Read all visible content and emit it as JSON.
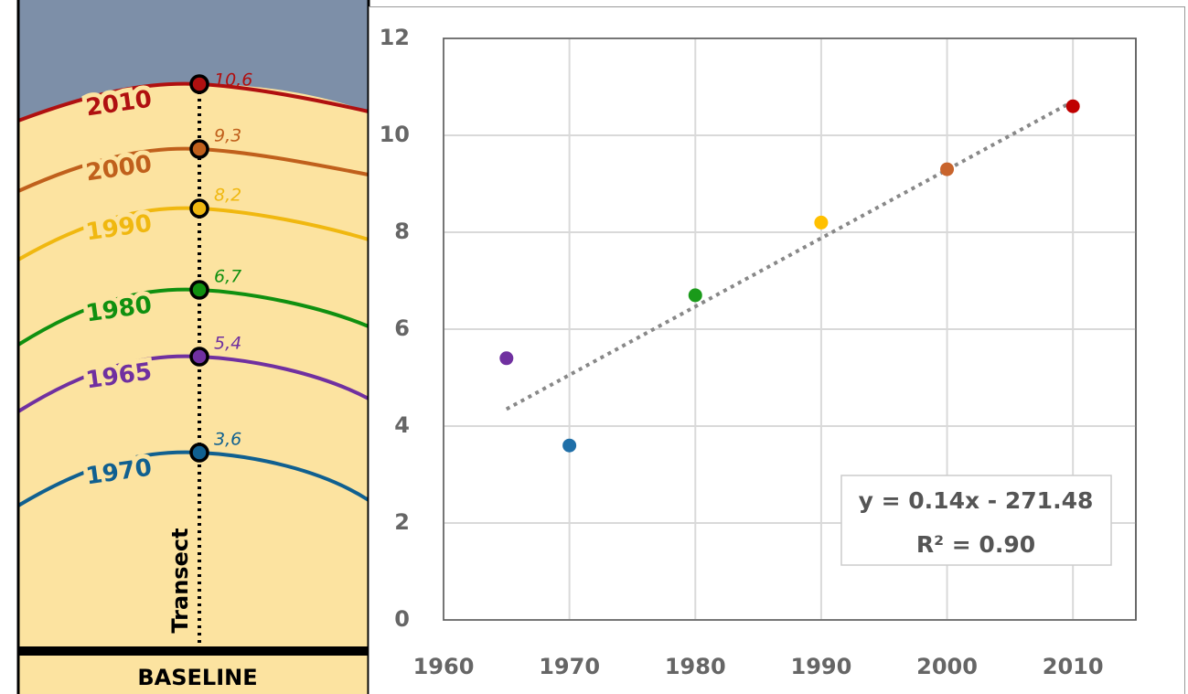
{
  "chart_data": {
    "type": "scatter",
    "x": [
      1965,
      1970,
      1980,
      1990,
      2000,
      2010
    ],
    "values": [
      5.4,
      3.6,
      6.7,
      8.2,
      9.3,
      10.6
    ],
    "colors": [
      "#7030a0",
      "#1f6fa8",
      "#1a9a1a",
      "#ffc000",
      "#c8642c",
      "#c00000"
    ],
    "trendline": {
      "x": [
        1965,
        2010
      ],
      "y": [
        4.35,
        10.7
      ],
      "color": "#888888"
    },
    "annotations": [
      "y = 0.14x - 271.48",
      "R² = 0.90"
    ],
    "xlim": [
      1960,
      2015
    ],
    "ylim": [
      0,
      12
    ],
    "xticks": [
      1960,
      1970,
      1980,
      1990,
      2000,
      2010
    ],
    "yticks": [
      0,
      2,
      4,
      6,
      8,
      10,
      12
    ],
    "grid": true
  },
  "diagram": {
    "shorelines": [
      {
        "year": "2010",
        "distance": "10,6",
        "color": "#b01010"
      },
      {
        "year": "2000",
        "distance": "9,3",
        "color": "#c0601c"
      },
      {
        "year": "1990",
        "distance": "8,2",
        "color": "#f0b810"
      },
      {
        "year": "1980",
        "distance": "6,7",
        "color": "#109010"
      },
      {
        "year": "1965",
        "distance": "5,4",
        "color": "#7030a0"
      },
      {
        "year": "1970",
        "distance": "3,6",
        "color": "#106090"
      }
    ],
    "transect": "Transect",
    "baseline": "BASELINE"
  }
}
